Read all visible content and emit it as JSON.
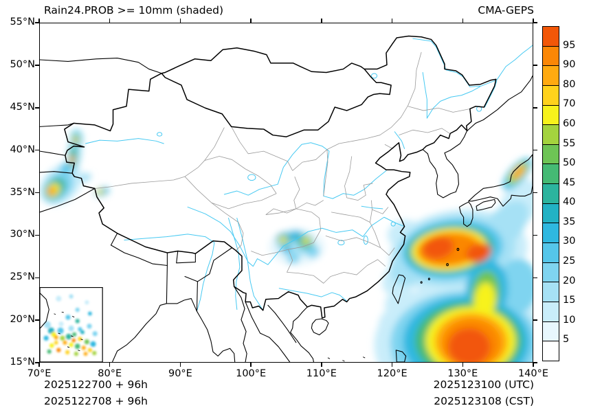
{
  "header": {
    "title": "Rain24.PROB >= 10mm (shaded)",
    "model": "CMA-GEPS"
  },
  "axes": {
    "lat_labels": [
      "55°N",
      "50°N",
      "45°N",
      "40°N",
      "35°N",
      "30°N",
      "25°N",
      "20°N",
      "15°N"
    ],
    "lon_labels": [
      "70°E",
      "80°E",
      "90°E",
      "100°E",
      "110°E",
      "120°E",
      "130°E",
      "140°E"
    ]
  },
  "footer": {
    "init_utc": "2025122700 + 96h",
    "init_cst": "2025122708 + 96h",
    "valid_utc": "2025123100 (UTC)",
    "valid_cst": "2025123108 (CST)"
  },
  "colorbar": {
    "labels_top_to_bottom": [
      "95",
      "90",
      "80",
      "70",
      "60",
      "55",
      "50",
      "45",
      "40",
      "35",
      "30",
      "25",
      "20",
      "15",
      "10",
      "5"
    ],
    "thresholds": [
      5,
      10,
      15,
      20,
      25,
      30,
      35,
      40,
      45,
      50,
      55,
      60,
      70,
      80,
      90,
      95
    ],
    "cell_colors_bottom_to_top": [
      "#ffffff",
      "#e8f7fd",
      "#c9edfa",
      "#a6e1f5",
      "#7fd4f0",
      "#55c6ea",
      "#2fb8e0",
      "#22b2c4",
      "#2cb49e",
      "#45ba74",
      "#6ec455",
      "#a4d33e",
      "#f7f21c",
      "#ffd21c",
      "#ffaa10",
      "#fb8706",
      "#f25708"
    ]
  },
  "chart_data": {
    "type": "map",
    "projection": "equirectangular",
    "lon_range": [
      70,
      140
    ],
    "lat_range": [
      15,
      55
    ],
    "shaded_features": [
      {
        "region": "east-china-sea",
        "ellipses": [
          [
            129.5,
            28.0,
            9.8,
            5.0,
            -5,
            10
          ],
          [
            129.0,
            28.2,
            8.6,
            4.2,
            -5,
            15
          ],
          [
            128.6,
            28.3,
            7.2,
            3.5,
            -5,
            25
          ],
          [
            128.3,
            28.3,
            6.2,
            2.9,
            -4,
            40
          ],
          [
            128.2,
            28.3,
            5.4,
            2.5,
            -4,
            60
          ],
          [
            128.2,
            28.3,
            4.7,
            2.1,
            -4,
            80
          ],
          [
            128.0,
            28.3,
            4.2,
            1.8,
            -4,
            90
          ],
          [
            126.6,
            28.5,
            2.2,
            1.3,
            -8,
            95
          ],
          [
            132.3,
            27.9,
            1.8,
            1.1,
            -12,
            95
          ],
          [
            136.0,
            31.0,
            4.0,
            2.2,
            -38,
            15
          ],
          [
            138.3,
            33.8,
            3.2,
            2.4,
            -40,
            10
          ],
          [
            122.8,
            26.5,
            3.2,
            2.2,
            -25,
            15
          ],
          [
            121.5,
            25.0,
            3.0,
            2.0,
            -25,
            10
          ],
          [
            122.0,
            30.0,
            2.6,
            1.8,
            0,
            10
          ]
        ]
      },
      {
        "region": "bridge-to-south",
        "ellipses": [
          [
            133.5,
            23.5,
            3.0,
            3.6,
            10,
            30
          ],
          [
            133.3,
            23.0,
            2.0,
            2.8,
            10,
            50
          ],
          [
            133.2,
            22.2,
            1.5,
            2.2,
            8,
            65
          ],
          [
            138.0,
            24.0,
            2.8,
            3.2,
            0,
            20
          ]
        ]
      },
      {
        "region": "philippine-sea",
        "ellipses": [
          [
            130.0,
            17.0,
            12.5,
            7.5,
            0,
            10
          ],
          [
            130.3,
            17.2,
            10.5,
            6.2,
            0,
            20
          ],
          [
            130.6,
            17.4,
            9.0,
            5.4,
            0,
            30
          ],
          [
            130.9,
            17.5,
            7.6,
            4.6,
            0,
            45
          ],
          [
            131.2,
            17.5,
            6.4,
            4.0,
            0,
            60
          ],
          [
            131.3,
            17.4,
            5.2,
            3.4,
            0,
            80
          ],
          [
            131.3,
            17.2,
            4.2,
            2.9,
            0,
            90
          ],
          [
            131.0,
            16.8,
            3.0,
            2.2,
            0,
            95
          ],
          [
            122.5,
            18.5,
            4.5,
            3.2,
            15,
            10
          ],
          [
            121.8,
            21.5,
            2.8,
            2.0,
            10,
            10
          ],
          [
            124.0,
            16.0,
            4.0,
            2.5,
            0,
            20
          ]
        ]
      },
      {
        "region": "honshu-coast",
        "ellipses": [
          [
            137.8,
            37.2,
            2.6,
            1.1,
            -42,
            25
          ],
          [
            137.9,
            37.3,
            1.8,
            0.75,
            -42,
            55
          ],
          [
            138.0,
            37.4,
            1.1,
            0.5,
            -42,
            80
          ]
        ]
      },
      {
        "region": "pamir-west-china",
        "ellipses": [
          [
            73.0,
            36.0,
            3.2,
            2.2,
            -30,
            10
          ],
          [
            72.6,
            35.7,
            2.4,
            1.6,
            -30,
            20
          ],
          [
            72.2,
            35.5,
            1.6,
            1.1,
            -30,
            40
          ],
          [
            71.9,
            35.3,
            1.0,
            0.75,
            -30,
            60
          ],
          [
            71.7,
            35.2,
            0.55,
            0.45,
            -30,
            90
          ],
          [
            74.9,
            39.6,
            1.0,
            2.4,
            8,
            15
          ],
          [
            74.7,
            39.2,
            0.55,
            1.3,
            8,
            40
          ],
          [
            74.6,
            38.9,
            0.3,
            0.55,
            8,
            80
          ],
          [
            75.2,
            41.4,
            0.9,
            1.1,
            0,
            20
          ],
          [
            75.1,
            41.3,
            0.45,
            0.6,
            0,
            55
          ],
          [
            75.1,
            41.2,
            0.22,
            0.3,
            0,
            85
          ],
          [
            73.6,
            37.9,
            0.7,
            0.6,
            0,
            25
          ],
          [
            76.5,
            36.8,
            0.8,
            0.5,
            -20,
            15
          ],
          [
            78.8,
            35.1,
            1.0,
            0.5,
            -15,
            30
          ],
          [
            78.6,
            35.1,
            0.5,
            0.3,
            -15,
            60
          ]
        ]
      },
      {
        "region": "sichuan-guizhou",
        "ellipses": [
          [
            106.5,
            28.6,
            4.0,
            2.2,
            0,
            5
          ],
          [
            106.2,
            29.0,
            2.6,
            1.6,
            0,
            15
          ],
          [
            104.7,
            29.5,
            1.1,
            0.75,
            0,
            35
          ],
          [
            104.6,
            29.4,
            0.55,
            0.4,
            0,
            60
          ],
          [
            106.4,
            29.9,
            0.9,
            0.6,
            0,
            30
          ],
          [
            107.7,
            29.2,
            1.1,
            0.8,
            0,
            40
          ],
          [
            107.8,
            29.3,
            0.5,
            0.4,
            0,
            65
          ],
          [
            108.7,
            28.1,
            1.0,
            0.8,
            0,
            20
          ],
          [
            106.0,
            27.2,
            0.9,
            0.6,
            0,
            20
          ],
          [
            105.1,
            28.3,
            0.6,
            0.45,
            0,
            30
          ]
        ]
      }
    ],
    "inset": {
      "lon_box": [
        70,
        78.9
      ],
      "lat_box": [
        15,
        23.8
      ],
      "speckles": [
        [
          0.3,
          0.15,
          0.4,
          10
        ],
        [
          0.5,
          0.12,
          0.3,
          15
        ],
        [
          0.75,
          0.2,
          0.3,
          10
        ],
        [
          0.6,
          0.3,
          0.3,
          20
        ],
        [
          0.8,
          0.35,
          0.28,
          30
        ],
        [
          0.45,
          0.4,
          0.35,
          25
        ],
        [
          0.6,
          0.45,
          0.3,
          40
        ],
        [
          0.34,
          0.49,
          0.35,
          10
        ],
        [
          0.12,
          0.5,
          0.5,
          15
        ],
        [
          0.5,
          0.55,
          0.4,
          15
        ],
        [
          0.64,
          0.56,
          0.3,
          25
        ],
        [
          0.79,
          0.52,
          0.35,
          20
        ],
        [
          0.18,
          0.58,
          0.45,
          35
        ],
        [
          0.33,
          0.58,
          0.45,
          25
        ],
        [
          0.22,
          0.63,
          0.35,
          60
        ],
        [
          0.46,
          0.66,
          0.4,
          40
        ],
        [
          0.26,
          0.67,
          0.3,
          85
        ],
        [
          0.36,
          0.68,
          0.35,
          55
        ],
        [
          0.1,
          0.68,
          0.35,
          30
        ],
        [
          0.64,
          0.69,
          0.3,
          70
        ],
        [
          0.54,
          0.71,
          0.28,
          90
        ],
        [
          0.55,
          0.63,
          0.3,
          45
        ],
        [
          0.68,
          0.6,
          0.28,
          35
        ],
        [
          0.75,
          0.73,
          0.35,
          50
        ],
        [
          0.26,
          0.74,
          0.28,
          70
        ],
        [
          0.4,
          0.74,
          0.3,
          80
        ],
        [
          0.85,
          0.76,
          0.4,
          30
        ],
        [
          0.5,
          0.77,
          0.32,
          65
        ],
        [
          0.19,
          0.78,
          0.32,
          60
        ],
        [
          0.6,
          0.79,
          0.38,
          45
        ],
        [
          0.7,
          0.81,
          0.3,
          85
        ],
        [
          0.88,
          0.62,
          0.35,
          20
        ],
        [
          0.3,
          0.84,
          0.3,
          90
        ],
        [
          0.8,
          0.84,
          0.3,
          70
        ],
        [
          0.15,
          0.86,
          0.3,
          45
        ],
        [
          0.44,
          0.87,
          0.3,
          75
        ],
        [
          0.58,
          0.89,
          0.3,
          55
        ],
        [
          0.73,
          0.89,
          0.28,
          80
        ],
        [
          0.87,
          0.88,
          0.3,
          55
        ]
      ]
    }
  }
}
